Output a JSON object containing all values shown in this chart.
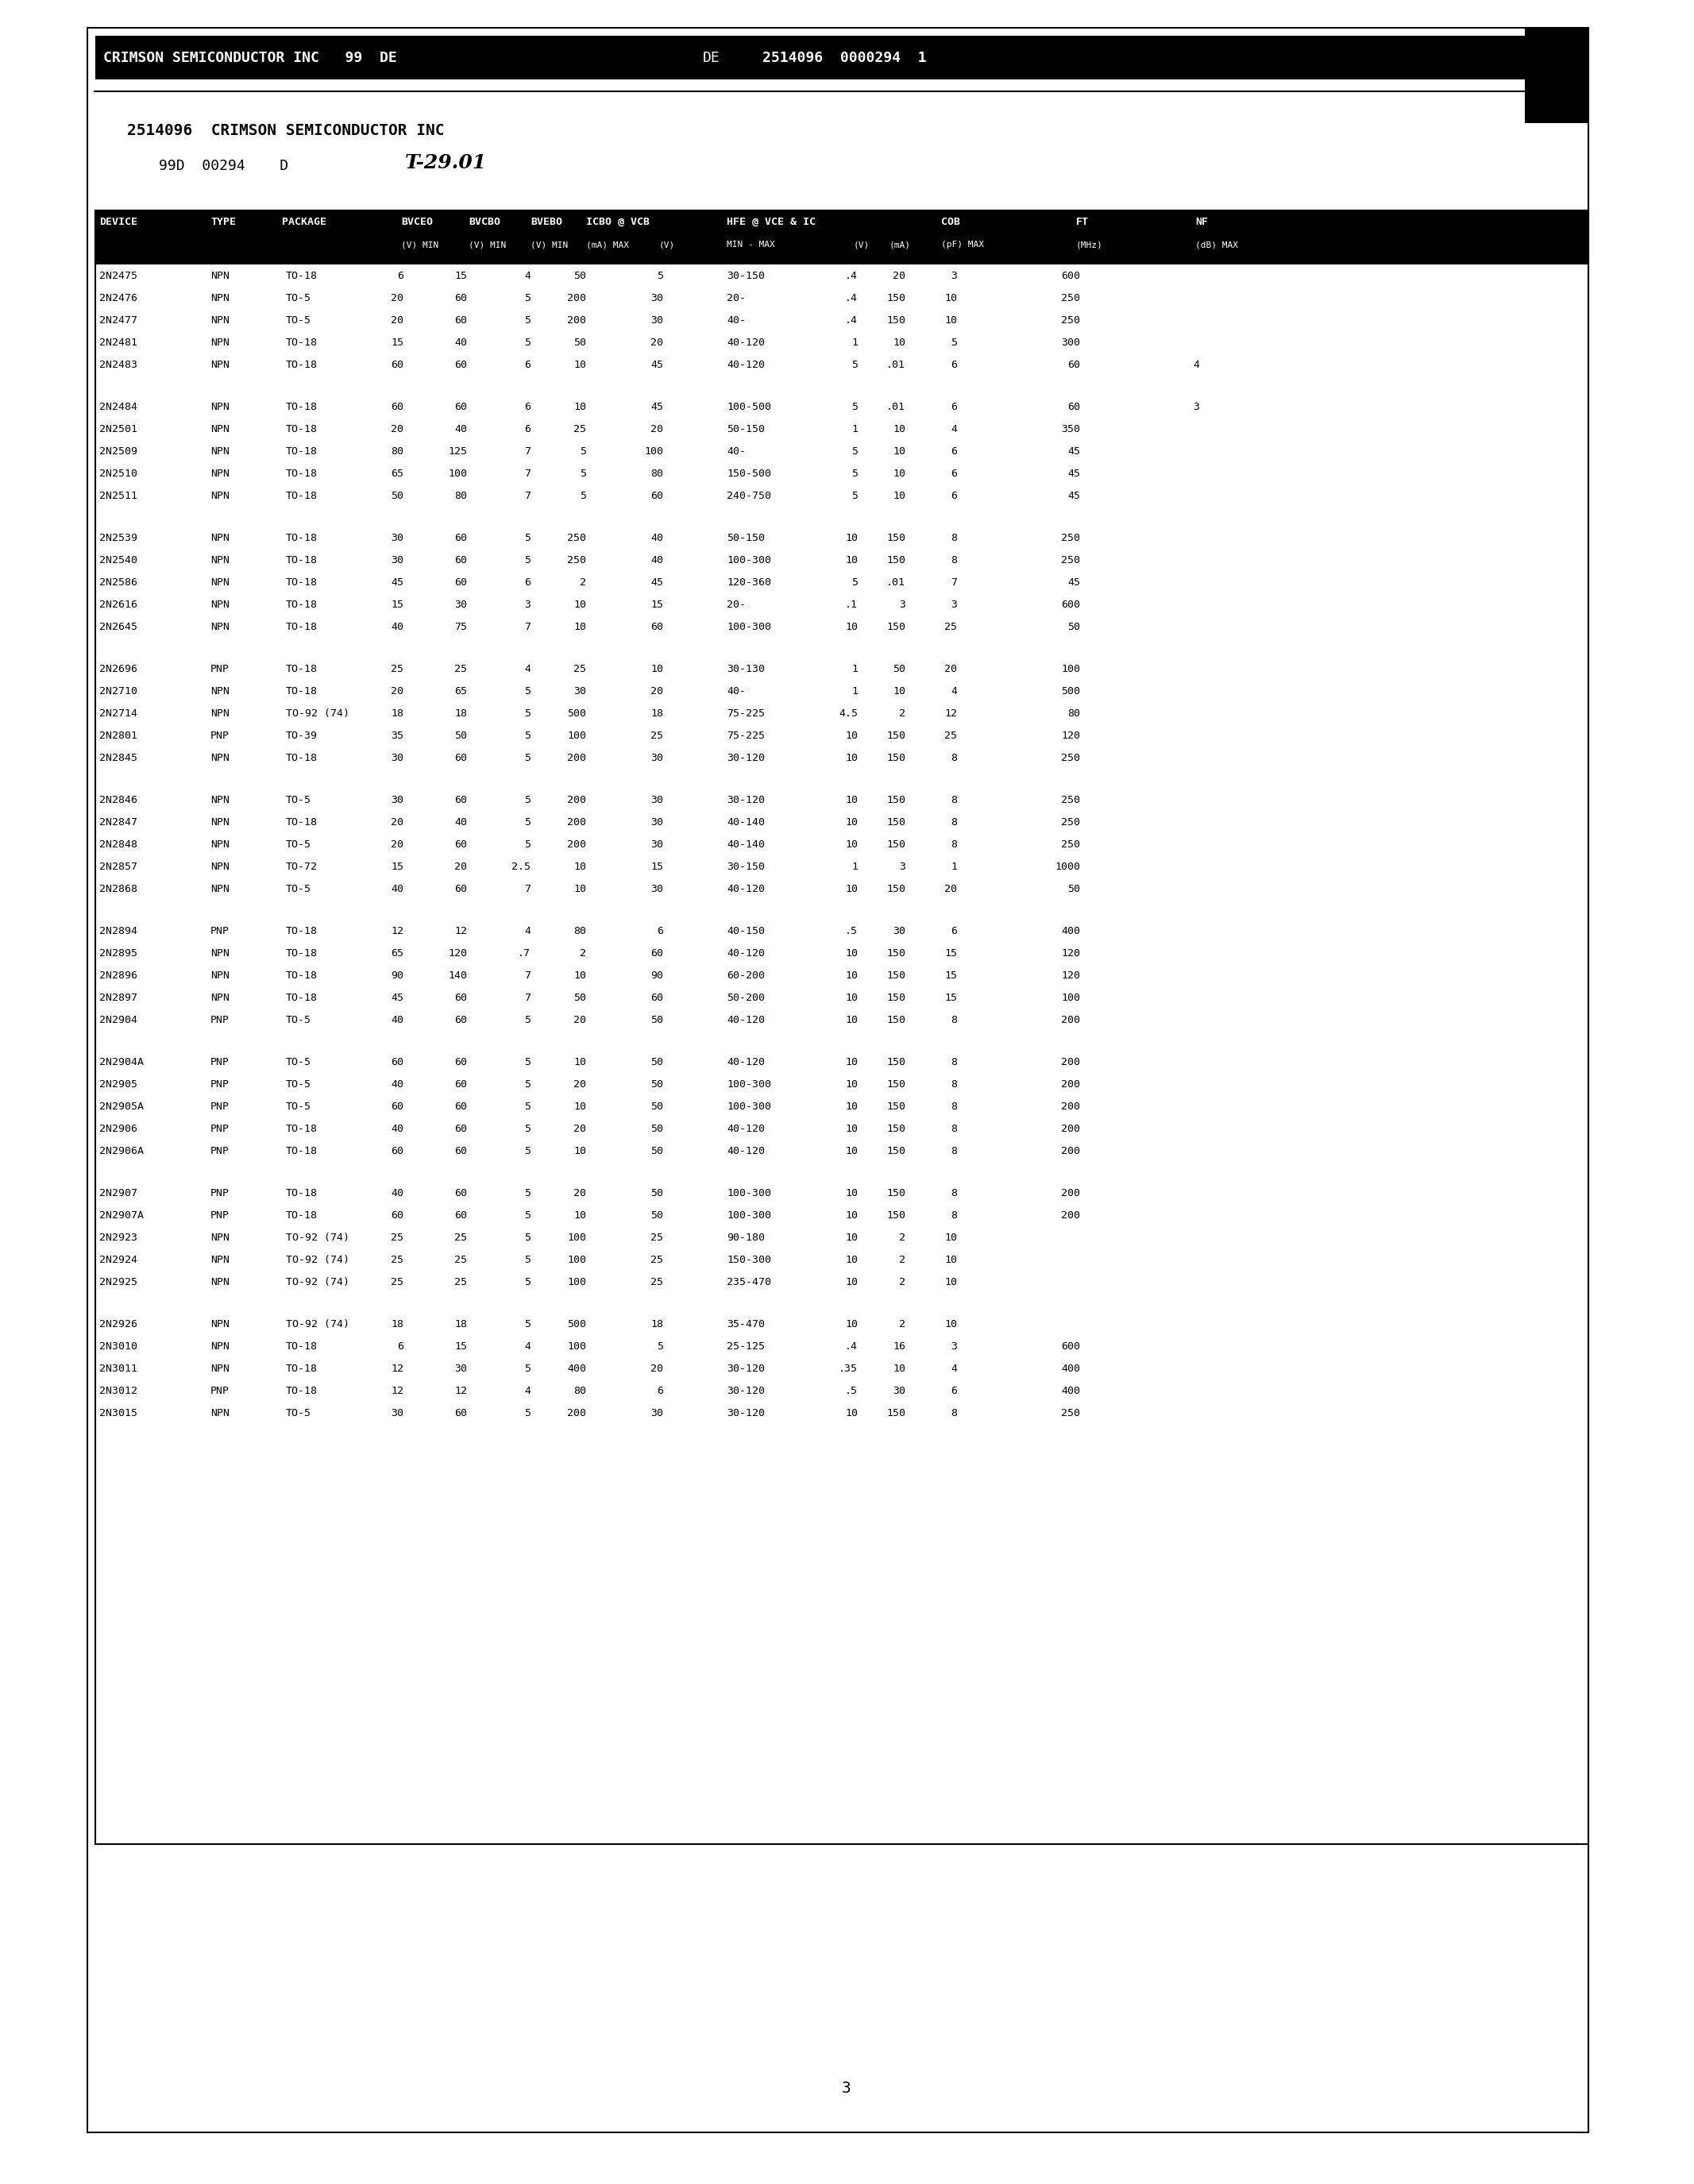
{
  "header_line1": "CRIMSON SEMICONDUCTOR INC   99  DE■ 2514096  0000294  1",
  "header_line2": "2514096  CRIMSON SEMICONDUCTOR INC",
  "header_line3": "99D  00294    D   T-29.01",
  "col_headers_row1": [
    "DEVICE",
    "TYPE",
    "PACKAGE",
    "BVCEO",
    "BVCBO",
    "BVEBO",
    "ICBO @ VCB",
    "HFE @ VCE & IC",
    "COB",
    "FT",
    "NF"
  ],
  "col_headers_row2": [
    "",
    "",
    "",
    "(V) MIN",
    "(V) MIN",
    "(V) MIN",
    "(mA) MAX  (V)",
    "MIN - MAX   (V)   (mA)",
    "(pF) MAX",
    "(MHz)",
    "(dB) MAX"
  ],
  "page_number": "3",
  "data_groups": [
    {
      "rows": [
        [
          "2N2475",
          "NPN",
          "TO-18",
          "6",
          "15",
          "4",
          "50",
          "5",
          "30-150",
          ".4",
          "20",
          "3",
          "600",
          ""
        ],
        [
          "2N2476",
          "NPN",
          "TO-5",
          "20",
          "60",
          "5",
          "200",
          "30",
          "20-",
          ".4",
          "150",
          "10",
          "250",
          ""
        ],
        [
          "2N2477",
          "NPN",
          "TO-5",
          "20",
          "60",
          "5",
          "200",
          "30",
          "40-",
          ".4",
          "150",
          "10",
          "250",
          ""
        ],
        [
          "2N2481",
          "NPN",
          "TO-18",
          "15",
          "40",
          "5",
          "50",
          "20",
          "40-120",
          "1",
          "10",
          "5",
          "300",
          ""
        ],
        [
          "2N2483",
          "NPN",
          "TO-18",
          "60",
          "60",
          "6",
          "10",
          "45",
          "40-120",
          "5",
          ".01",
          "6",
          "60",
          "4"
        ]
      ]
    },
    {
      "rows": [
        [
          "2N2484",
          "NPN",
          "TO-18",
          "60",
          "60",
          "6",
          "10",
          "45",
          "100-500",
          "5",
          ".01",
          "6",
          "60",
          "3"
        ],
        [
          "2N2501",
          "NPN",
          "TO-18",
          "20",
          "40",
          "6",
          "25",
          "20",
          "50-150",
          "1",
          "10",
          "4",
          "350",
          ""
        ],
        [
          "2N2509",
          "NPN",
          "TO-18",
          "80",
          "125",
          "7",
          "5",
          "100",
          "40-",
          "5",
          "10",
          "6",
          "45",
          ""
        ],
        [
          "2N2510",
          "NPN",
          "TO-18",
          "65",
          "100",
          "7",
          "5",
          "80",
          "150-500",
          "5",
          "10",
          "6",
          "45",
          ""
        ],
        [
          "2N2511",
          "NPN",
          "TO-18",
          "50",
          "80",
          "7",
          "5",
          "60",
          "240-750",
          "5",
          "10",
          "6",
          "45",
          ""
        ]
      ]
    },
    {
      "rows": [
        [
          "2N2539",
          "NPN",
          "TO-18",
          "30",
          "60",
          "5",
          "250",
          "40",
          "50-150",
          "10",
          "150",
          "8",
          "250",
          ""
        ],
        [
          "2N2540",
          "NPN",
          "TO-18",
          "30",
          "60",
          "5",
          "250",
          "40",
          "100-300",
          "10",
          "150",
          "8",
          "250",
          ""
        ],
        [
          "2N2586",
          "NPN",
          "TO-18",
          "45",
          "60",
          "6",
          "2",
          "45",
          "120-360",
          "5",
          ".01",
          "7",
          "45",
          ""
        ],
        [
          "2N2616",
          "NPN",
          "TO-18",
          "15",
          "30",
          "3",
          "10",
          "15",
          "20-",
          ".1",
          "3",
          "3",
          "600",
          ""
        ],
        [
          "2N2645",
          "NPN",
          "TO-18",
          "40",
          "75",
          "7",
          "10",
          "60",
          "100-300",
          "10",
          "150",
          "25",
          "50",
          ""
        ]
      ]
    },
    {
      "rows": [
        [
          "2N2696",
          "PNP",
          "TO-18",
          "25",
          "25",
          "4",
          "25",
          "10",
          "30-130",
          "1",
          "50",
          "20",
          "100",
          ""
        ],
        [
          "2N2710",
          "NPN",
          "TO-18",
          "20",
          "65",
          "5",
          "30",
          "20",
          "40-",
          "1",
          "10",
          "4",
          "500",
          ""
        ],
        [
          "2N2714",
          "NPN",
          "TO-92 (74)",
          "18",
          "18",
          "5",
          "500",
          "18",
          "75-225",
          "4.5",
          "2",
          "12",
          "80",
          ""
        ],
        [
          "2N2801",
          "PNP",
          "TO-39",
          "35",
          "50",
          "5",
          "100",
          "25",
          "75-225",
          "10",
          "150",
          "25",
          "120",
          ""
        ],
        [
          "2N2845",
          "NPN",
          "TO-18",
          "30",
          "60",
          "5",
          "200",
          "30",
          "30-120",
          "10",
          "150",
          "8",
          "250",
          ""
        ]
      ]
    },
    {
      "rows": [
        [
          "2N2846",
          "NPN",
          "TO-5",
          "30",
          "60",
          "5",
          "200",
          "30",
          "30-120",
          "10",
          "150",
          "8",
          "250",
          ""
        ],
        [
          "2N2847",
          "NPN",
          "TO-18",
          "20",
          "40",
          "5",
          "200",
          "30",
          "40-140",
          "10",
          "150",
          "8",
          "250",
          ""
        ],
        [
          "2N2848",
          "NPN",
          "TO-5",
          "20",
          "60",
          "5",
          "200",
          "30",
          "40-140",
          "10",
          "150",
          "8",
          "250",
          ""
        ],
        [
          "2N2857",
          "NPN",
          "TO-72",
          "15",
          "20",
          "2.5",
          "10",
          "15",
          "30-150",
          "1",
          "3",
          "1",
          "1000",
          ""
        ],
        [
          "2N2868",
          "NPN",
          "TO-5",
          "40",
          "60",
          "7",
          "10",
          "30",
          "40-120",
          "10",
          "150",
          "20",
          "50",
          ""
        ]
      ]
    },
    {
      "rows": [
        [
          "2N2894",
          "PNP",
          "TO-18",
          "12",
          "12",
          "4",
          "80",
          "6",
          "40-150",
          ".5",
          "30",
          "6",
          "400",
          ""
        ],
        [
          "2N2895",
          "NPN",
          "TO-18",
          "65",
          "120",
          ".7",
          "2",
          "60",
          "40-120",
          "10",
          "150",
          "15",
          "120",
          ""
        ],
        [
          "2N2896",
          "NPN",
          "TO-18",
          "90",
          "140",
          "7",
          "10",
          "90",
          "60-200",
          "10",
          "150",
          "15",
          "120",
          ""
        ],
        [
          "2N2897",
          "NPN",
          "TO-18",
          "45",
          "60",
          "7",
          "50",
          "60",
          "50-200",
          "10",
          "150",
          "15",
          "100",
          ""
        ],
        [
          "2N2904",
          "PNP",
          "TO-5",
          "40",
          "60",
          "5",
          "20",
          "50",
          "40-120",
          "10",
          "150",
          "8",
          "200",
          ""
        ]
      ]
    },
    {
      "rows": [
        [
          "2N2904A",
          "PNP",
          "TO-5",
          "60",
          "60",
          "5",
          "10",
          "50",
          "40-120",
          "10",
          "150",
          "8",
          "200",
          ""
        ],
        [
          "2N2905",
          "PNP",
          "TO-5",
          "40",
          "60",
          "5",
          "20",
          "50",
          "100-300",
          "10",
          "150",
          "8",
          "200",
          ""
        ],
        [
          "2N2905A",
          "PNP",
          "TO-5",
          "60",
          "60",
          "5",
          "10",
          "50",
          "100-300",
          "10",
          "150",
          "8",
          "200",
          ""
        ],
        [
          "2N2906",
          "PNP",
          "TO-18",
          "40",
          "60",
          "5",
          "20",
          "50",
          "40-120",
          "10",
          "150",
          "8",
          "200",
          ""
        ],
        [
          "2N2906A",
          "PNP",
          "TO-18",
          "60",
          "60",
          "5",
          "10",
          "50",
          "40-120",
          "10",
          "150",
          "8",
          "200",
          ""
        ]
      ]
    },
    {
      "rows": [
        [
          "2N2907",
          "PNP",
          "TO-18",
          "40",
          "60",
          "5",
          "20",
          "50",
          "100-300",
          "10",
          "150",
          "8",
          "200",
          ""
        ],
        [
          "2N2907A",
          "PNP",
          "TO-18",
          "60",
          "60",
          "5",
          "10",
          "50",
          "100-300",
          "10",
          "150",
          "8",
          "200",
          ""
        ],
        [
          "2N2923",
          "NPN",
          "TO-92 (74)",
          "25",
          "25",
          "5",
          "100",
          "25",
          "90-180",
          "10",
          "2",
          "10",
          "",
          ""
        ],
        [
          "2N2924",
          "NPN",
          "TO-92 (74)",
          "25",
          "25",
          "5",
          "100",
          "25",
          "150-300",
          "10",
          "2",
          "10",
          "",
          ""
        ],
        [
          "2N2925",
          "NPN",
          "TO-92 (74)",
          "25",
          "25",
          "5",
          "100",
          "25",
          "235-470",
          "10",
          "2",
          "10",
          "",
          ""
        ]
      ]
    },
    {
      "rows": [
        [
          "2N2926",
          "NPN",
          "TO-92 (74)",
          "18",
          "18",
          "5",
          "500",
          "18",
          "35-470",
          "10",
          "2",
          "10",
          "",
          ""
        ],
        [
          "2N3010",
          "NPN",
          "TO-18",
          "6",
          "15",
          "4",
          "100",
          "5",
          "25-125",
          ".4",
          "16",
          "3",
          "600",
          ""
        ],
        [
          "2N3011",
          "NPN",
          "TO-18",
          "12",
          "30",
          "5",
          "400",
          "20",
          "30-120",
          ".35",
          "10",
          "4",
          "400",
          ""
        ],
        [
          "2N3012",
          "PNP",
          "TO-18",
          "12",
          "12",
          "4",
          "80",
          "6",
          "30-120",
          ".5",
          "30",
          "6",
          "400",
          ""
        ],
        [
          "2N3015",
          "NPN",
          "TO-5",
          "30",
          "60",
          "5",
          "200",
          "30",
          "30-120",
          "10",
          "150",
          "8",
          "250",
          ""
        ]
      ]
    }
  ]
}
